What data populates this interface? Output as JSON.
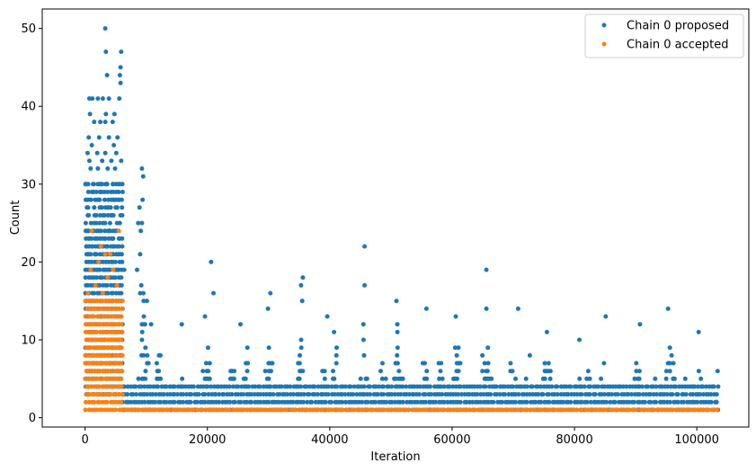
{
  "chart_data": {
    "type": "scatter",
    "xlabel": "Iteration",
    "ylabel": "Count",
    "xlim": [
      -7000,
      108500
    ],
    "ylim": [
      -1.2,
      52.5
    ],
    "xticks": [
      0,
      20000,
      40000,
      60000,
      80000,
      100000
    ],
    "yticks": [
      0,
      10,
      20,
      30,
      40,
      50
    ],
    "xtick_labels": [
      "0",
      "20000",
      "40000",
      "60000",
      "80000",
      "100000"
    ],
    "ytick_labels": [
      "0",
      "10",
      "20",
      "30",
      "40",
      "50"
    ],
    "grid": false,
    "legend_position": "top-right",
    "series": [
      {
        "name": "Chain 0 proposed",
        "color": "#1f77b4",
        "points": [
          [
            3300,
            50
          ],
          [
            3400,
            47
          ],
          [
            5900,
            47
          ],
          [
            5800,
            45
          ],
          [
            5700,
            44
          ],
          [
            3600,
            44
          ],
          [
            5800,
            43
          ],
          [
            700,
            41
          ],
          [
            1200,
            41
          ],
          [
            2100,
            41
          ],
          [
            2900,
            41
          ],
          [
            3900,
            41
          ],
          [
            5600,
            41
          ],
          [
            800,
            39
          ],
          [
            3400,
            39
          ],
          [
            4800,
            39
          ],
          [
            1500,
            38
          ],
          [
            2500,
            38
          ],
          [
            3300,
            38
          ],
          [
            4500,
            38
          ],
          [
            600,
            36
          ],
          [
            2300,
            36
          ],
          [
            3900,
            36
          ],
          [
            5300,
            36
          ],
          [
            1100,
            35
          ],
          [
            4700,
            35
          ],
          [
            400,
            34
          ],
          [
            2000,
            34
          ],
          [
            3300,
            34
          ],
          [
            5100,
            34
          ],
          [
            700,
            33
          ],
          [
            2800,
            33
          ],
          [
            4300,
            33
          ],
          [
            5900,
            33
          ],
          [
            900,
            32
          ],
          [
            2100,
            32
          ],
          [
            3700,
            32
          ],
          [
            4900,
            32
          ],
          [
            9300,
            32
          ],
          [
            9500,
            31
          ],
          [
            200,
            30
          ],
          [
            1300,
            30
          ],
          [
            2500,
            30
          ],
          [
            3500,
            30
          ],
          [
            4600,
            30
          ],
          [
            5700,
            30
          ],
          [
            900,
            28
          ],
          [
            2200,
            28
          ],
          [
            3200,
            28
          ],
          [
            4400,
            28
          ],
          [
            5400,
            28
          ],
          [
            9400,
            28
          ],
          [
            300,
            27
          ],
          [
            1500,
            27
          ],
          [
            2700,
            27
          ],
          [
            3800,
            27
          ],
          [
            5000,
            27
          ],
          [
            8900,
            27
          ],
          [
            600,
            26
          ],
          [
            1800,
            26
          ],
          [
            4200,
            26
          ],
          [
            5800,
            26
          ],
          [
            8700,
            25
          ],
          [
            9300,
            25
          ],
          [
            300,
            24
          ],
          [
            1400,
            24
          ],
          [
            2600,
            24
          ],
          [
            3900,
            24
          ],
          [
            5200,
            24
          ],
          [
            9100,
            24
          ],
          [
            700,
            23
          ],
          [
            2000,
            23
          ],
          [
            3300,
            23
          ],
          [
            4600,
            23
          ],
          [
            5700,
            23
          ],
          [
            200,
            22
          ],
          [
            1200,
            22
          ],
          [
            2400,
            22
          ],
          [
            3600,
            22
          ],
          [
            4800,
            22
          ],
          [
            45700,
            22
          ],
          [
            500,
            21
          ],
          [
            1700,
            21
          ],
          [
            3000,
            21
          ],
          [
            4300,
            21
          ],
          [
            5500,
            21
          ],
          [
            9000,
            21
          ],
          [
            20600,
            20
          ],
          [
            800,
            19
          ],
          [
            2100,
            19
          ],
          [
            3500,
            19
          ],
          [
            5000,
            19
          ],
          [
            6400,
            19
          ],
          [
            8500,
            19
          ],
          [
            65600,
            19
          ],
          [
            35600,
            18
          ],
          [
            9200,
            17
          ],
          [
            35300,
            17
          ],
          [
            45700,
            17
          ],
          [
            9000,
            16
          ],
          [
            21000,
            16
          ],
          [
            30300,
            16
          ],
          [
            35500,
            15
          ],
          [
            50900,
            15
          ],
          [
            10100,
            15
          ],
          [
            55800,
            14
          ],
          [
            65600,
            14
          ],
          [
            70800,
            14
          ],
          [
            95300,
            14
          ],
          [
            29900,
            14
          ],
          [
            39600,
            13
          ],
          [
            60600,
            13
          ],
          [
            85100,
            13
          ],
          [
            19600,
            13
          ],
          [
            10800,
            12
          ],
          [
            15800,
            12
          ],
          [
            25400,
            12
          ],
          [
            90700,
            12
          ],
          [
            45500,
            12
          ],
          [
            75500,
            11
          ],
          [
            100300,
            11
          ],
          [
            40700,
            11
          ],
          [
            80800,
            10
          ],
          [
            103400,
            6
          ],
          [
            77800,
            2
          ],
          [
            80500,
            2
          ],
          [
            99200,
            2
          ],
          [
            103200,
            2
          ]
        ]
      },
      {
        "name": "Chain 0 accepted",
        "color": "#ff7f0e",
        "points": [
          [
            1100,
            24
          ],
          [
            2600,
            22
          ],
          [
            3300,
            21
          ],
          [
            4100,
            21
          ],
          [
            5500,
            24
          ],
          [
            2200,
            20
          ],
          [
            4600,
            19
          ],
          [
            900,
            19
          ],
          [
            1700,
            17
          ],
          [
            3700,
            18
          ],
          [
            5200,
            17
          ],
          [
            500,
            16
          ],
          [
            2900,
            16
          ]
        ]
      }
    ],
    "bands": [
      {
        "series": 0,
        "x_start": 0,
        "x_end": 6000,
        "y_min": 3,
        "y_max": 30,
        "density": "dense"
      },
      {
        "series": 0,
        "x_start": 6000,
        "x_end": 103500,
        "y_min": 1,
        "y_max": 4,
        "density": "dense"
      },
      {
        "series": 1,
        "x_start": 0,
        "x_end": 6000,
        "y_min": 1,
        "y_max": 15,
        "density": "dense"
      },
      {
        "series": 1,
        "x_start": 6000,
        "x_end": 103500,
        "y_min": 1,
        "y_max": 1,
        "density": "dense"
      }
    ],
    "bursts": [
      {
        "x": 9500,
        "peak": 17
      },
      {
        "x": 12000,
        "peak": 10
      },
      {
        "x": 15500,
        "peak": 9
      },
      {
        "x": 19800,
        "peak": 11
      },
      {
        "x": 24000,
        "peak": 9
      },
      {
        "x": 26500,
        "peak": 10
      },
      {
        "x": 30000,
        "peak": 12
      },
      {
        "x": 35300,
        "peak": 11
      },
      {
        "x": 38800,
        "peak": 8
      },
      {
        "x": 41000,
        "peak": 9
      },
      {
        "x": 45500,
        "peak": 11
      },
      {
        "x": 48500,
        "peak": 9
      },
      {
        "x": 51000,
        "peak": 12
      },
      {
        "x": 55200,
        "peak": 10
      },
      {
        "x": 57800,
        "peak": 9
      },
      {
        "x": 60700,
        "peak": 12
      },
      {
        "x": 65500,
        "peak": 13
      },
      {
        "x": 69800,
        "peak": 9
      },
      {
        "x": 72600,
        "peak": 8
      },
      {
        "x": 75400,
        "peak": 9
      },
      {
        "x": 80500,
        "peak": 6
      },
      {
        "x": 82200,
        "peak": 8
      },
      {
        "x": 84800,
        "peak": 9
      },
      {
        "x": 90300,
        "peak": 9
      },
      {
        "x": 92900,
        "peak": 6
      },
      {
        "x": 95500,
        "peak": 11
      },
      {
        "x": 98000,
        "peak": 5
      },
      {
        "x": 100300,
        "peak": 8
      }
    ]
  }
}
